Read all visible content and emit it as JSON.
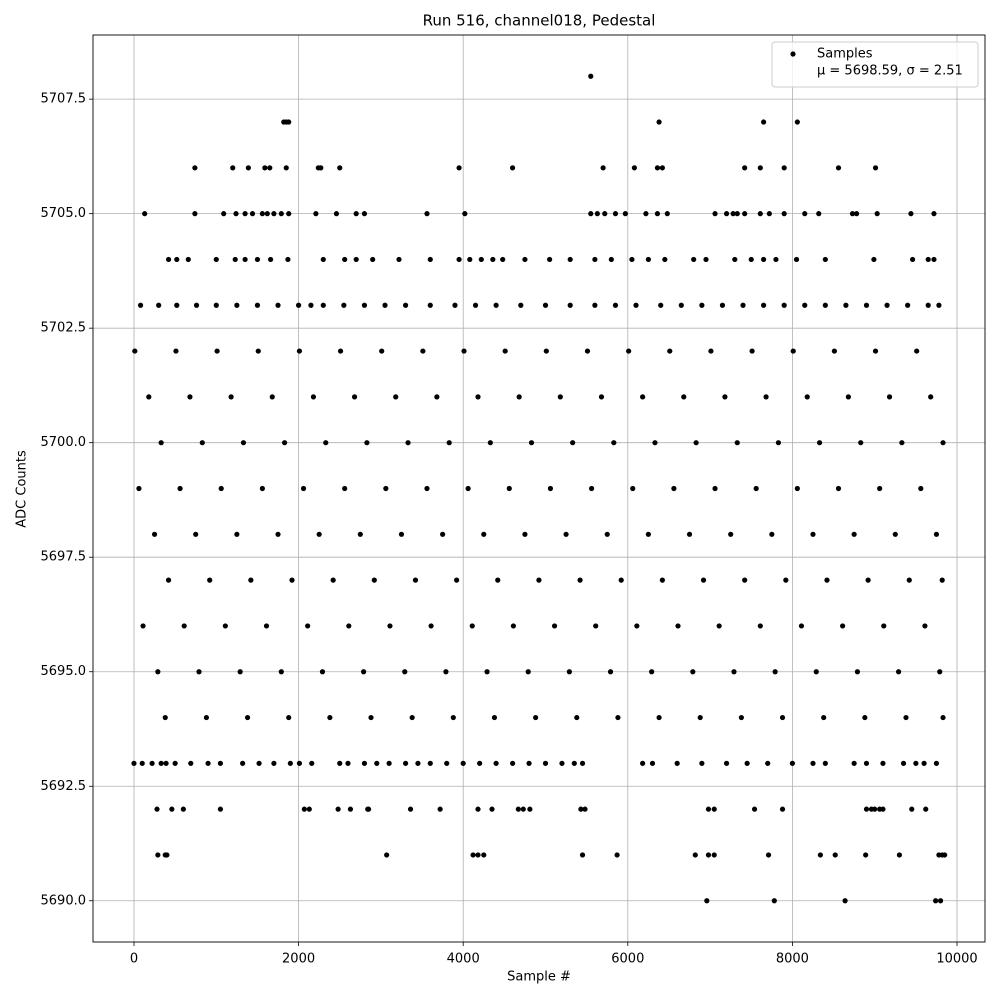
{
  "chart_data": {
    "type": "scatter",
    "title": "Run 516, channel018, Pedestal",
    "xlabel": "Sample #",
    "ylabel": "ADC Counts",
    "xlim": [
      -498,
      10340
    ],
    "ylim": [
      5689.1,
      5708.9
    ],
    "xticks": [
      0,
      2000,
      4000,
      6000,
      8000,
      10000
    ],
    "yticks": [
      {
        "value": 5690,
        "label": "5690.0"
      },
      5692.5,
      {
        "value": 5695,
        "label": "5695.0"
      },
      5697.5,
      {
        "value": 5700,
        "label": "5700.0"
      },
      5702.5,
      {
        "value": 5705,
        "label": "5705.0"
      },
      5707.5
    ],
    "grid": true,
    "legend": "upper right",
    "series": [
      {
        "name": "Samples",
        "stats_label": "μ = 5698.59, σ = 2.51",
        "color": "#000000",
        "x": [
          5550,
          1820,
          1850,
          1880,
          6380,
          7650,
          8060,
          740,
          1200,
          1390,
          1590,
          1650,
          1850,
          2240,
          2270,
          2500,
          3950,
          4600,
          5700,
          6080,
          6360,
          6420,
          7420,
          7610,
          7900,
          8560,
          9010,
          130,
          740,
          1090,
          1240,
          1350,
          1440,
          1560,
          1700,
          1790,
          1880,
          2210,
          2460,
          2700,
          2800,
          3560,
          4020,
          5550,
          5630,
          5720,
          5850,
          5970,
          6220,
          6360,
          6480,
          7060,
          7200,
          7330,
          7420,
          7610,
          7720,
          7900,
          8150,
          8320,
          8730,
          9030,
          9440,
          9720,
          1620,
          7280,
          8780,
          420,
          520,
          660,
          1000,
          1230,
          1350,
          1500,
          1660,
          1870,
          2300,
          2560,
          2700,
          2900,
          3220,
          3600,
          3950,
          4080,
          4220,
          4360,
          4480,
          4750,
          5050,
          5300,
          5600,
          5800,
          6050,
          6250,
          6450,
          6800,
          6950,
          7300,
          7500,
          7650,
          7800,
          8050,
          8400,
          8990,
          9460,
          9650,
          9720,
          80,
          300,
          520,
          760,
          1000,
          1250,
          1500,
          1750,
          2000,
          2300,
          2550,
          2800,
          3050,
          3300,
          3600,
          3900,
          4150,
          4400,
          4700,
          5000,
          5300,
          5600,
          5850,
          6100,
          6400,
          6650,
          6900,
          7150,
          7400,
          7650,
          7900,
          8150,
          8400,
          8650,
          8900,
          9150,
          9400,
          9650,
          9780,
          2150,
          10,
          510,
          1010,
          1510,
          2010,
          2510,
          3010,
          3510,
          4010,
          4510,
          5010,
          5510,
          6010,
          6510,
          7010,
          7510,
          8010,
          8510,
          9010,
          9510,
          180,
          680,
          1180,
          1680,
          2180,
          2680,
          3180,
          3680,
          4180,
          4680,
          5180,
          5680,
          6180,
          6680,
          7180,
          7680,
          8180,
          8680,
          9180,
          9680,
          330,
          830,
          1330,
          1830,
          2330,
          2830,
          3330,
          3830,
          4330,
          4830,
          5330,
          5830,
          6330,
          6830,
          7330,
          7830,
          8330,
          8830,
          9330,
          9830,
          60,
          560,
          1060,
          1560,
          2060,
          2560,
          3060,
          3560,
          4060,
          4560,
          5060,
          5560,
          6060,
          6560,
          7060,
          7560,
          8060,
          8560,
          9060,
          9560,
          250,
          750,
          1250,
          1750,
          2250,
          2750,
          3250,
          3750,
          4250,
          4750,
          5250,
          5750,
          6250,
          6750,
          7250,
          7750,
          8250,
          8750,
          9250,
          9750,
          420,
          920,
          1420,
          1920,
          2420,
          2920,
          3420,
          3920,
          4420,
          4920,
          5420,
          5920,
          6420,
          6920,
          7420,
          7920,
          8420,
          8920,
          9420,
          9820,
          110,
          610,
          1110,
          1610,
          2110,
          2610,
          3110,
          3610,
          4110,
          4610,
          5110,
          5610,
          6110,
          6610,
          7110,
          7610,
          8110,
          8610,
          9110,
          9610,
          290,
          790,
          1290,
          1790,
          2290,
          2790,
          3290,
          3790,
          4290,
          4790,
          5290,
          5790,
          6290,
          6790,
          7290,
          7790,
          8290,
          8790,
          9290,
          9790,
          380,
          880,
          1380,
          1880,
          2380,
          2880,
          3380,
          3880,
          4380,
          4880,
          5380,
          5880,
          6380,
          6880,
          7380,
          7880,
          8380,
          8880,
          9380,
          9830,
          0,
          100,
          220,
          330,
          390,
          500,
          690,
          900,
          1050,
          1320,
          1520,
          1700,
          1900,
          2010,
          2160,
          2500,
          2600,
          2800,
          2950,
          3100,
          3300,
          3450,
          3600,
          3800,
          4000,
          4200,
          4400,
          4600,
          4800,
          5000,
          5200,
          5350,
          5450,
          6180,
          6300,
          6600,
          6900,
          7200,
          7450,
          7700,
          8000,
          8250,
          8400,
          8750,
          8900,
          9100,
          9350,
          9500,
          9600,
          9750,
          280,
          460,
          600,
          1050,
          2070,
          2130,
          2480,
          2630,
          2840,
          3360,
          3720,
          4180,
          4350,
          4670,
          4730,
          4810,
          5430,
          5480,
          6980,
          7050,
          7540,
          7880,
          8900,
          9000,
          9100,
          9450,
          9620,
          9060,
          2850,
          8960,
          290,
          380,
          400,
          3070,
          4120,
          4180,
          4250,
          5450,
          5870,
          6820,
          6980,
          7050,
          7710,
          8340,
          8520,
          8890,
          9300,
          9780,
          9820,
          9850,
          6960,
          7780,
          8640,
          9740,
          9800
        ],
        "values": [
          5708,
          5707,
          5707,
          5707,
          5707,
          5707,
          5707,
          5706,
          5706,
          5706,
          5706,
          5706,
          5706,
          5706,
          5706,
          5706,
          5706,
          5706,
          5706,
          5706,
          5706,
          5706,
          5706,
          5706,
          5706,
          5706,
          5706,
          5705,
          5705,
          5705,
          5705,
          5705,
          5705,
          5705,
          5705,
          5705,
          5705,
          5705,
          5705,
          5705,
          5705,
          5705,
          5705,
          5705,
          5705,
          5705,
          5705,
          5705,
          5705,
          5705,
          5705,
          5705,
          5705,
          5705,
          5705,
          5705,
          5705,
          5705,
          5705,
          5705,
          5705,
          5705,
          5705,
          5705,
          5705,
          5705,
          5705,
          5704,
          5704,
          5704,
          5704,
          5704,
          5704,
          5704,
          5704,
          5704,
          5704,
          5704,
          5704,
          5704,
          5704,
          5704,
          5704,
          5704,
          5704,
          5704,
          5704,
          5704,
          5704,
          5704,
          5704,
          5704,
          5704,
          5704,
          5704,
          5704,
          5704,
          5704,
          5704,
          5704,
          5704,
          5704,
          5704,
          5704,
          5704,
          5704,
          5704,
          5703,
          5703,
          5703,
          5703,
          5703,
          5703,
          5703,
          5703,
          5703,
          5703,
          5703,
          5703,
          5703,
          5703,
          5703,
          5703,
          5703,
          5703,
          5703,
          5703,
          5703,
          5703,
          5703,
          5703,
          5703,
          5703,
          5703,
          5703,
          5703,
          5703,
          5703,
          5703,
          5703,
          5703,
          5703,
          5703,
          5703,
          5703,
          5703,
          5703,
          5702,
          5702,
          5702,
          5702,
          5702,
          5702,
          5702,
          5702,
          5702,
          5702,
          5702,
          5702,
          5702,
          5702,
          5702,
          5702,
          5702,
          5702,
          5702,
          5702,
          5701,
          5701,
          5701,
          5701,
          5701,
          5701,
          5701,
          5701,
          5701,
          5701,
          5701,
          5701,
          5701,
          5701,
          5701,
          5701,
          5701,
          5701,
          5701,
          5701,
          5700,
          5700,
          5700,
          5700,
          5700,
          5700,
          5700,
          5700,
          5700,
          5700,
          5700,
          5700,
          5700,
          5700,
          5700,
          5700,
          5700,
          5700,
          5700,
          5700,
          5699,
          5699,
          5699,
          5699,
          5699,
          5699,
          5699,
          5699,
          5699,
          5699,
          5699,
          5699,
          5699,
          5699,
          5699,
          5699,
          5699,
          5699,
          5699,
          5699,
          5698,
          5698,
          5698,
          5698,
          5698,
          5698,
          5698,
          5698,
          5698,
          5698,
          5698,
          5698,
          5698,
          5698,
          5698,
          5698,
          5698,
          5698,
          5698,
          5698,
          5697,
          5697,
          5697,
          5697,
          5697,
          5697,
          5697,
          5697,
          5697,
          5697,
          5697,
          5697,
          5697,
          5697,
          5697,
          5697,
          5697,
          5697,
          5697,
          5697,
          5696,
          5696,
          5696,
          5696,
          5696,
          5696,
          5696,
          5696,
          5696,
          5696,
          5696,
          5696,
          5696,
          5696,
          5696,
          5696,
          5696,
          5696,
          5696,
          5696,
          5695,
          5695,
          5695,
          5695,
          5695,
          5695,
          5695,
          5695,
          5695,
          5695,
          5695,
          5695,
          5695,
          5695,
          5695,
          5695,
          5695,
          5695,
          5695,
          5695,
          5694,
          5694,
          5694,
          5694,
          5694,
          5694,
          5694,
          5694,
          5694,
          5694,
          5694,
          5694,
          5694,
          5694,
          5694,
          5694,
          5694,
          5694,
          5694,
          5694,
          5693,
          5693,
          5693,
          5693,
          5693,
          5693,
          5693,
          5693,
          5693,
          5693,
          5693,
          5693,
          5693,
          5693,
          5693,
          5693,
          5693,
          5693,
          5693,
          5693,
          5693,
          5693,
          5693,
          5693,
          5693,
          5693,
          5693,
          5693,
          5693,
          5693,
          5693,
          5693,
          5693,
          5693,
          5693,
          5693,
          5693,
          5693,
          5693,
          5693,
          5693,
          5693,
          5693,
          5693,
          5693,
          5693,
          5693,
          5693,
          5693,
          5693,
          5692,
          5692,
          5692,
          5692,
          5692,
          5692,
          5692,
          5692,
          5692,
          5692,
          5692,
          5692,
          5692,
          5692,
          5692,
          5692,
          5692,
          5692,
          5692,
          5692,
          5692,
          5692,
          5692,
          5692,
          5692,
          5692,
          5692,
          5692,
          5692,
          5692,
          5691,
          5691,
          5691,
          5691,
          5691,
          5691,
          5691,
          5691,
          5691,
          5691,
          5691,
          5691,
          5691,
          5691,
          5691,
          5691,
          5691,
          5691,
          5691,
          5691,
          5690,
          5690,
          5690,
          5690,
          5690
        ]
      }
    ]
  }
}
